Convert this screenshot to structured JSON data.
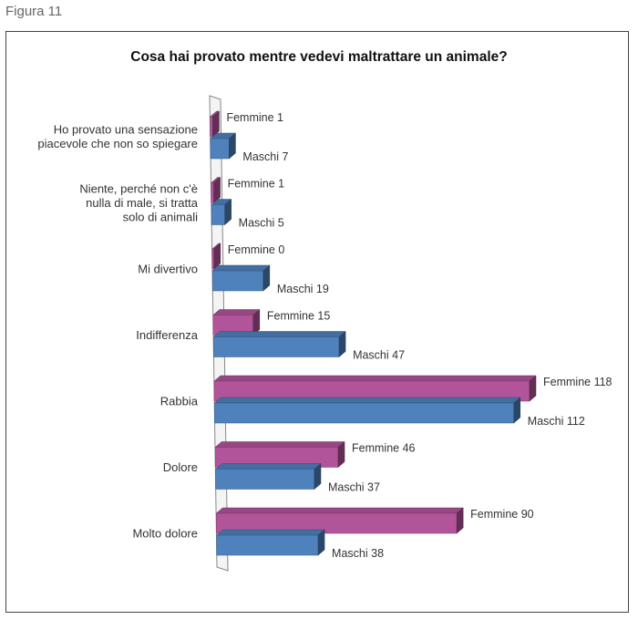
{
  "figure_label": "Figura 11",
  "chart_data": {
    "type": "bar",
    "orientation": "horizontal",
    "title": "Cosa hai provato mentre vedevi maltrattare un animale?",
    "categories": [
      [
        "Ho provato una sensazione",
        "piacevole che non so spiegare"
      ],
      [
        "Niente, perché non c'è",
        "nulla di male, si tratta",
        "solo di animali"
      ],
      [
        "Mi divertivo"
      ],
      [
        "Indifferenza"
      ],
      [
        "Rabbia"
      ],
      [
        "Dolore"
      ],
      [
        "Molto dolore"
      ]
    ],
    "series": [
      {
        "name": "Femmine",
        "color": "#b2549a",
        "values": [
          1,
          1,
          0,
          15,
          118,
          46,
          90
        ],
        "labels": [
          "Femmine 1",
          "Femmine 1",
          "Femmine 0",
          "Femmine 15",
          "Femmine 118",
          "Femmine 46",
          "Femmine 90"
        ]
      },
      {
        "name": "Maschi",
        "color": "#4f81bd",
        "values": [
          7,
          5,
          19,
          47,
          112,
          37,
          38
        ],
        "labels": [
          "Maschi 7",
          "Maschi 5",
          "Maschi 19",
          "Maschi 47",
          "Maschi 112",
          "Maschi 37",
          "Maschi 38"
        ]
      }
    ],
    "xlim": [
      0,
      118
    ],
    "grid": false
  }
}
